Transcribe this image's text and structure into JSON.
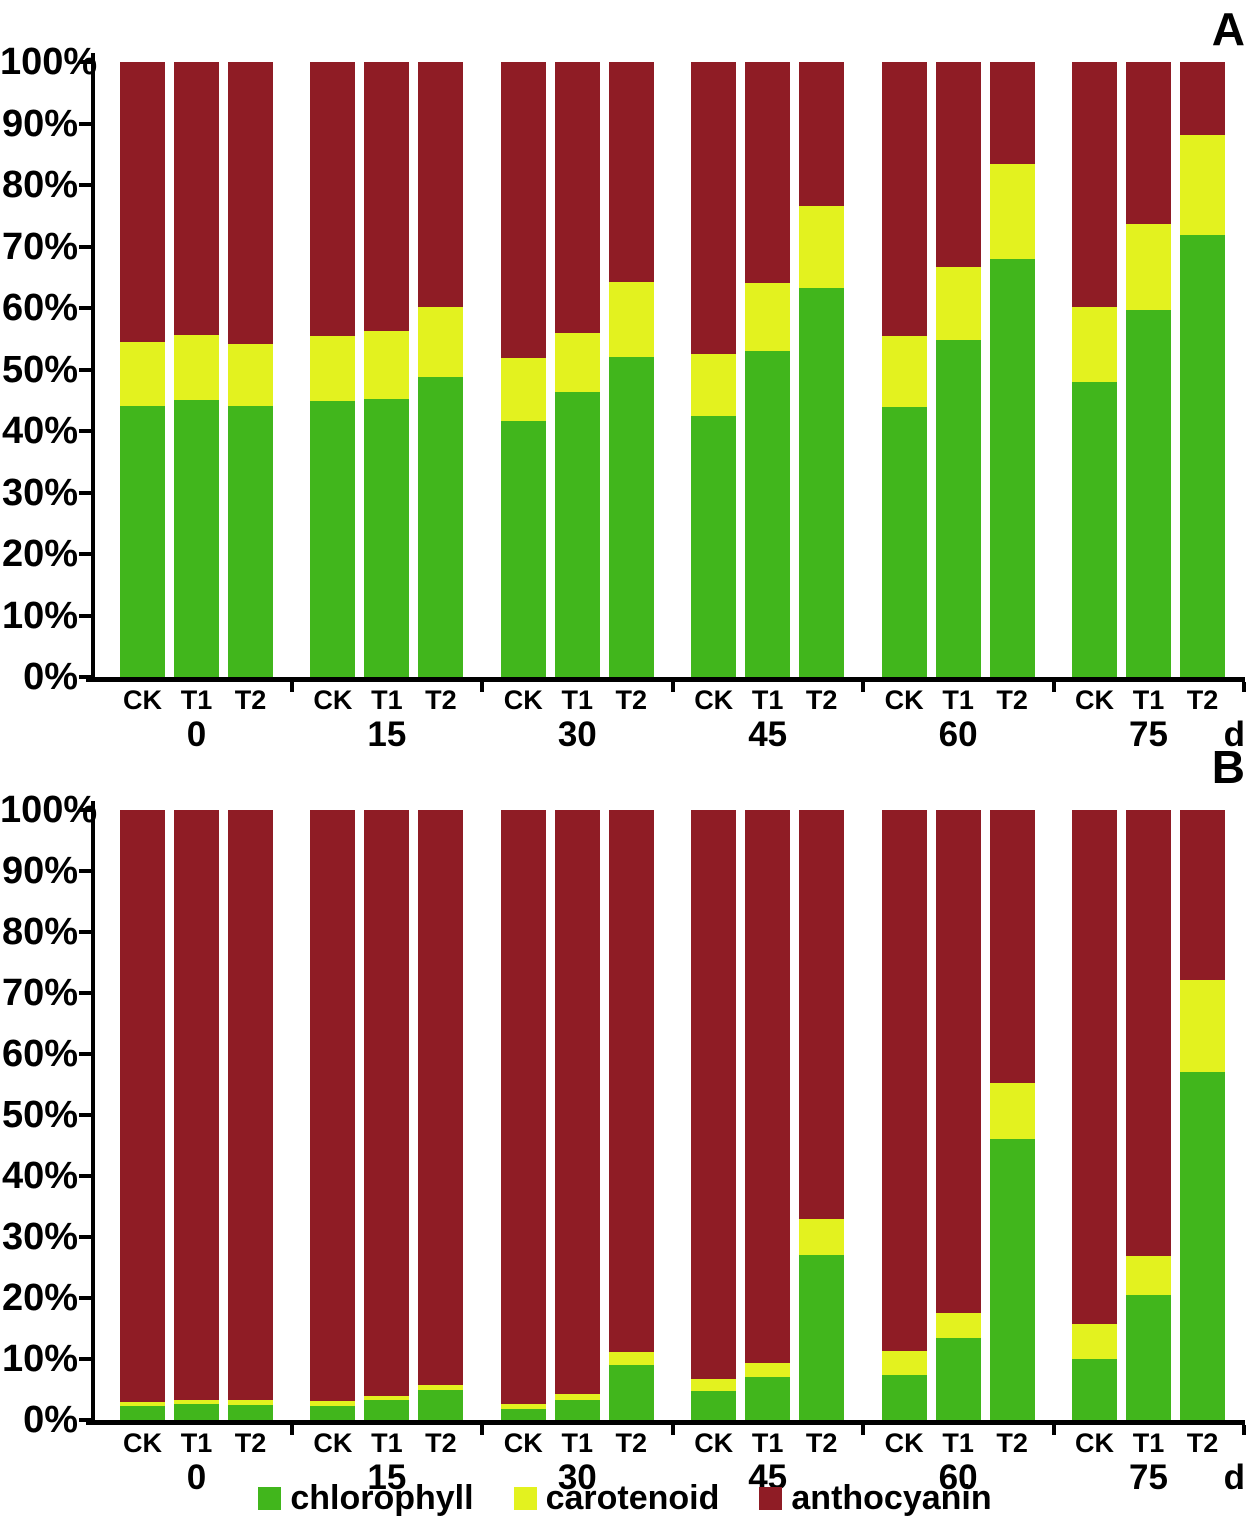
{
  "figure": {
    "panel_a_label": "A",
    "panel_b_label": "B",
    "x_unit_label": "d",
    "treatment_labels": [
      "CK",
      "T1",
      "T2"
    ],
    "time_groups": [
      "0",
      "15",
      "30",
      "45",
      "60",
      "75"
    ],
    "y_tick_labels": [
      "0%",
      "10%",
      "20%",
      "30%",
      "40%",
      "50%",
      "60%",
      "70%",
      "80%",
      "90%",
      "100%"
    ],
    "legend": [
      {
        "label": "chlorophyll",
        "color": "#41B61C"
      },
      {
        "label": "carotenoid",
        "color": "#E3F21F"
      },
      {
        "label": "anthocyanin",
        "color": "#8F1C25"
      }
    ]
  },
  "chart_data": [
    {
      "panel": "A",
      "type": "bar",
      "stacked": true,
      "unit": "%",
      "ylim": [
        0,
        100
      ],
      "ytick_step": 10,
      "grid": false,
      "legend_position": "bottom",
      "categories": [
        "0",
        "15",
        "30",
        "45",
        "60",
        "75"
      ],
      "bars_per_category": [
        "CK",
        "T1",
        "T2"
      ],
      "series_order": [
        "chlorophyll",
        "carotenoid",
        "anthocyanin"
      ],
      "values": {
        "0": {
          "CK": [
            44.1,
            10.3,
            45.6
          ],
          "T1": [
            45.1,
            10.5,
            44.4
          ],
          "T2": [
            44.1,
            10.1,
            45.8
          ]
        },
        "15": {
          "CK": [
            44.8,
            10.6,
            44.6
          ],
          "T1": [
            45.2,
            11.1,
            43.7
          ],
          "T2": [
            48.8,
            11.4,
            39.8
          ]
        },
        "30": {
          "CK": [
            41.6,
            10.2,
            48.2
          ],
          "T1": [
            46.4,
            9.6,
            44.0
          ],
          "T2": [
            52.1,
            12.1,
            35.8
          ]
        },
        "45": {
          "CK": [
            42.4,
            10.2,
            47.4
          ],
          "T1": [
            53.0,
            11.1,
            35.9
          ],
          "T2": [
            63.3,
            13.3,
            23.4
          ]
        },
        "60": {
          "CK": [
            43.9,
            11.5,
            44.6
          ],
          "T1": [
            54.8,
            11.9,
            33.3
          ],
          "T2": [
            68.0,
            15.4,
            16.6
          ]
        },
        "75": {
          "CK": [
            47.9,
            12.2,
            39.9
          ],
          "T1": [
            59.7,
            14.0,
            26.3
          ],
          "T2": [
            71.9,
            16.2,
            11.9
          ]
        }
      }
    },
    {
      "panel": "B",
      "type": "bar",
      "stacked": true,
      "unit": "%",
      "ylim": [
        0,
        100
      ],
      "ytick_step": 10,
      "grid": false,
      "legend_position": "bottom",
      "categories": [
        "0",
        "15",
        "30",
        "45",
        "60",
        "75"
      ],
      "bars_per_category": [
        "CK",
        "T1",
        "T2"
      ],
      "series_order": [
        "chlorophyll",
        "carotenoid",
        "anthocyanin"
      ],
      "values": {
        "0": {
          "CK": [
            2.3,
            0.7,
            97.0
          ],
          "T1": [
            2.6,
            0.7,
            96.7
          ],
          "T2": [
            2.5,
            0.7,
            96.8
          ]
        },
        "15": {
          "CK": [
            2.3,
            0.8,
            96.9
          ],
          "T1": [
            3.2,
            0.7,
            96.1
          ],
          "T2": [
            4.9,
            0.8,
            94.3
          ]
        },
        "30": {
          "CK": [
            1.8,
            0.9,
            97.3
          ],
          "T1": [
            3.3,
            1.0,
            95.7
          ],
          "T2": [
            9.0,
            2.2,
            88.8
          ]
        },
        "45": {
          "CK": [
            4.8,
            2.0,
            93.2
          ],
          "T1": [
            7.0,
            2.4,
            90.6
          ],
          "T2": [
            27.0,
            6.0,
            67.0
          ]
        },
        "60": {
          "CK": [
            7.3,
            4.0,
            88.7
          ],
          "T1": [
            13.5,
            4.1,
            82.4
          ],
          "T2": [
            46.0,
            9.2,
            44.8
          ]
        },
        "75": {
          "CK": [
            10.0,
            5.8,
            84.2
          ],
          "T1": [
            20.5,
            6.4,
            73.1
          ],
          "T2": [
            57.1,
            15.0,
            27.9
          ]
        }
      }
    }
  ]
}
